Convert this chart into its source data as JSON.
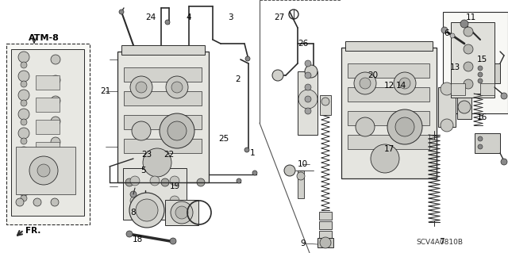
{
  "bg_color": "#f5f5f0",
  "fig_width": 6.4,
  "fig_height": 3.19,
  "code_text": "SCV4A0810B",
  "line_color": "#2a2a2a",
  "label_fontsize": 6.0
}
